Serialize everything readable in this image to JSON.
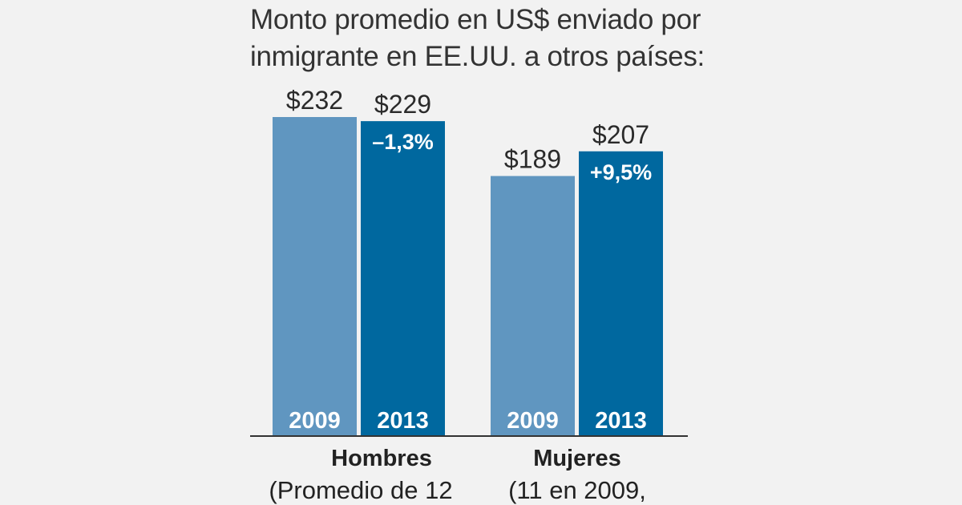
{
  "chart_data": {
    "type": "bar",
    "title": [
      "Monto promedio en US$ enviado por",
      "inmigrante en EE.UU. a otros países:"
    ],
    "categories": [
      "Hombres",
      "Mujeres"
    ],
    "category_notes": [
      "(Promedio de 12",
      "(11 en 2009,"
    ],
    "series": [
      {
        "name": "2009",
        "values": [
          232,
          189
        ],
        "value_labels": [
          "$232",
          "$189"
        ],
        "color": "#6096c0"
      },
      {
        "name": "2013",
        "values": [
          229,
          207
        ],
        "value_labels": [
          "$229",
          "$207"
        ],
        "change_labels": [
          "–1,3%",
          "+9,5%"
        ],
        "color": "#00689f"
      }
    ],
    "grid": false,
    "legend": "none"
  }
}
